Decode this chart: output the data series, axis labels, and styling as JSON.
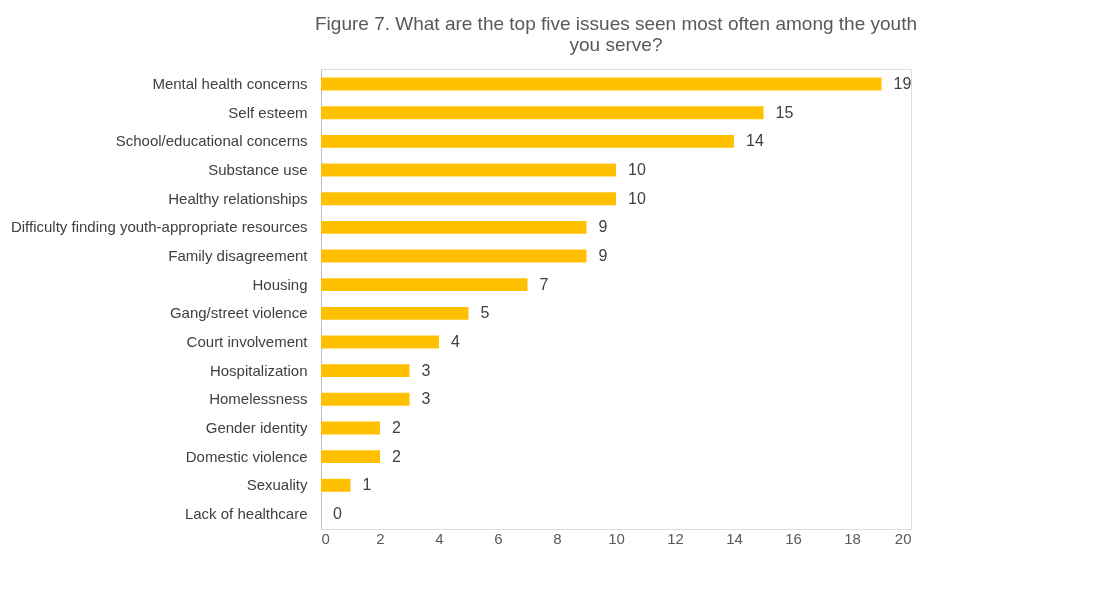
{
  "chart_data": {
    "type": "bar",
    "orientation": "horizontal",
    "title": "Figure 7. What are the top five issues seen most often among the youth you serve?",
    "categories": [
      "Mental health concerns",
      "Self esteem",
      "School/educational concerns",
      "Substance use",
      "Healthy relationships",
      "Difficulty finding youth-appropriate resources",
      "Family disagreement",
      "Housing",
      "Gang/street violence",
      "Court involvement",
      "Hospitalization",
      "Homelessness",
      "Gender identity",
      "Domestic violence",
      "Sexuality",
      "Lack of healthcare"
    ],
    "values": [
      19,
      15,
      14,
      10,
      10,
      9,
      9,
      7,
      5,
      4,
      3,
      3,
      2,
      2,
      1,
      0
    ],
    "color": "#ffc000",
    "xlim": [
      0,
      20
    ],
    "xticks": [
      0,
      2,
      4,
      6,
      8,
      10,
      12,
      14,
      16,
      18,
      20
    ],
    "data_labels": true,
    "grid": false
  }
}
